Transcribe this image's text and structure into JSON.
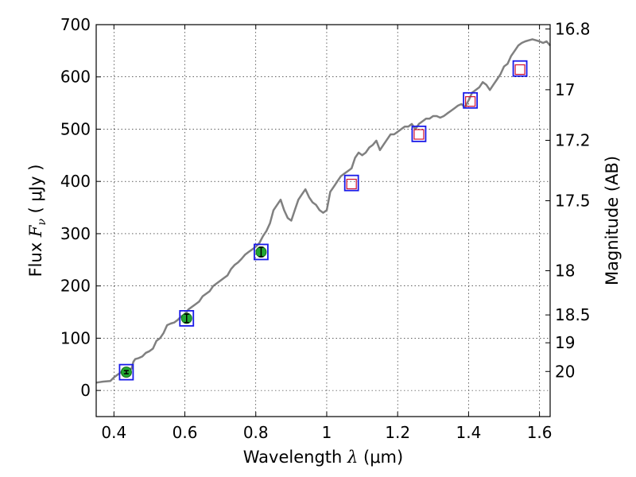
{
  "chart_data": {
    "type": "line",
    "title": "",
    "xlabel": {
      "prefix": "Wavelength  ",
      "symbol": "λ",
      "unit": " (μm)"
    },
    "ylabel": {
      "prefix": "Flux  ",
      "symbol": "F",
      "subscript": "ν",
      "unit": " ( μJy )"
    },
    "y2label": "Magnitude (AB)",
    "xlim": [
      0.35,
      1.63
    ],
    "ylim": [
      -50,
      700
    ],
    "grid": true,
    "x_ticks": [
      0.4,
      0.6,
      0.8,
      1.0,
      1.2,
      1.4,
      1.6
    ],
    "x_tick_labels": [
      "0.4",
      "0.6",
      "0.8",
      "1",
      "1.2",
      "1.4",
      "1.6"
    ],
    "y_ticks": [
      0,
      100,
      200,
      300,
      400,
      500,
      600,
      700
    ],
    "y_tick_labels": [
      "0",
      "100",
      "200",
      "300",
      "400",
      "500",
      "600",
      "700"
    ],
    "mag_ticks": [
      16.8,
      17,
      17.2,
      17.5,
      18,
      18.5,
      19,
      20
    ],
    "mag_tick_labels": [
      "16.8",
      "17",
      "17.2",
      "17.5",
      "18",
      "18.5",
      "19",
      "20"
    ],
    "series": [
      {
        "name": "spectrum",
        "color": "#808080",
        "x": [
          0.35,
          0.37,
          0.39,
          0.4,
          0.41,
          0.42,
          0.43,
          0.44,
          0.45,
          0.455,
          0.46,
          0.47,
          0.48,
          0.49,
          0.5,
          0.51,
          0.52,
          0.53,
          0.54,
          0.55,
          0.56,
          0.57,
          0.58,
          0.59,
          0.6,
          0.61,
          0.62,
          0.63,
          0.64,
          0.65,
          0.66,
          0.67,
          0.68,
          0.69,
          0.7,
          0.71,
          0.72,
          0.73,
          0.74,
          0.75,
          0.76,
          0.77,
          0.78,
          0.79,
          0.8,
          0.81,
          0.82,
          0.83,
          0.84,
          0.85,
          0.86,
          0.87,
          0.88,
          0.89,
          0.9,
          0.91,
          0.92,
          0.93,
          0.94,
          0.95,
          0.96,
          0.97,
          0.98,
          0.99,
          1.0,
          1.01,
          1.02,
          1.03,
          1.04,
          1.05,
          1.06,
          1.07,
          1.08,
          1.09,
          1.1,
          1.11,
          1.12,
          1.13,
          1.14,
          1.15,
          1.16,
          1.17,
          1.18,
          1.19,
          1.2,
          1.21,
          1.22,
          1.23,
          1.24,
          1.25,
          1.26,
          1.27,
          1.28,
          1.29,
          1.3,
          1.31,
          1.32,
          1.33,
          1.34,
          1.35,
          1.36,
          1.37,
          1.38,
          1.39,
          1.4,
          1.41,
          1.42,
          1.43,
          1.44,
          1.45,
          1.46,
          1.47,
          1.48,
          1.49,
          1.5,
          1.51,
          1.52,
          1.53,
          1.54,
          1.55,
          1.56,
          1.57,
          1.58,
          1.59,
          1.6,
          1.61,
          1.62,
          1.63
        ],
        "y": [
          15,
          17,
          18,
          25,
          30,
          35,
          38,
          40,
          42,
          55,
          60,
          62,
          65,
          72,
          75,
          80,
          95,
          100,
          110,
          125,
          128,
          130,
          135,
          142,
          145,
          155,
          160,
          165,
          170,
          180,
          185,
          190,
          200,
          205,
          210,
          215,
          220,
          232,
          240,
          245,
          252,
          260,
          265,
          270,
          275,
          282,
          295,
          305,
          320,
          345,
          355,
          365,
          345,
          330,
          325,
          345,
          365,
          375,
          385,
          370,
          360,
          355,
          345,
          340,
          345,
          380,
          390,
          400,
          410,
          415,
          420,
          425,
          445,
          455,
          450,
          455,
          465,
          470,
          478,
          460,
          470,
          480,
          490,
          490,
          495,
          500,
          505,
          505,
          510,
          500,
          510,
          515,
          520,
          520,
          525,
          525,
          522,
          525,
          530,
          535,
          540,
          545,
          548,
          542,
          555,
          570,
          575,
          580,
          590,
          585,
          575,
          585,
          595,
          605,
          620,
          625,
          640,
          650,
          660,
          665,
          668,
          670,
          672,
          670,
          668,
          665,
          668,
          660
        ]
      }
    ],
    "points": [
      {
        "name": "green-photometry",
        "x": [
          0.435,
          0.605,
          0.815
        ],
        "y": [
          35,
          138,
          265
        ],
        "yerr": [
          3,
          8,
          9
        ],
        "color": "#22a632"
      },
      {
        "name": "red-squares",
        "x": [
          1.07,
          1.26,
          1.405,
          1.545
        ],
        "y": [
          395,
          490,
          553,
          614
        ],
        "color": "#d01030"
      },
      {
        "name": "blue-squares",
        "x": [
          0.435,
          0.605,
          0.815,
          1.07,
          1.26,
          1.405,
          1.545
        ],
        "y": [
          35,
          138,
          265,
          397,
          491,
          555,
          616
        ],
        "color": "#1a1ae8"
      }
    ]
  }
}
